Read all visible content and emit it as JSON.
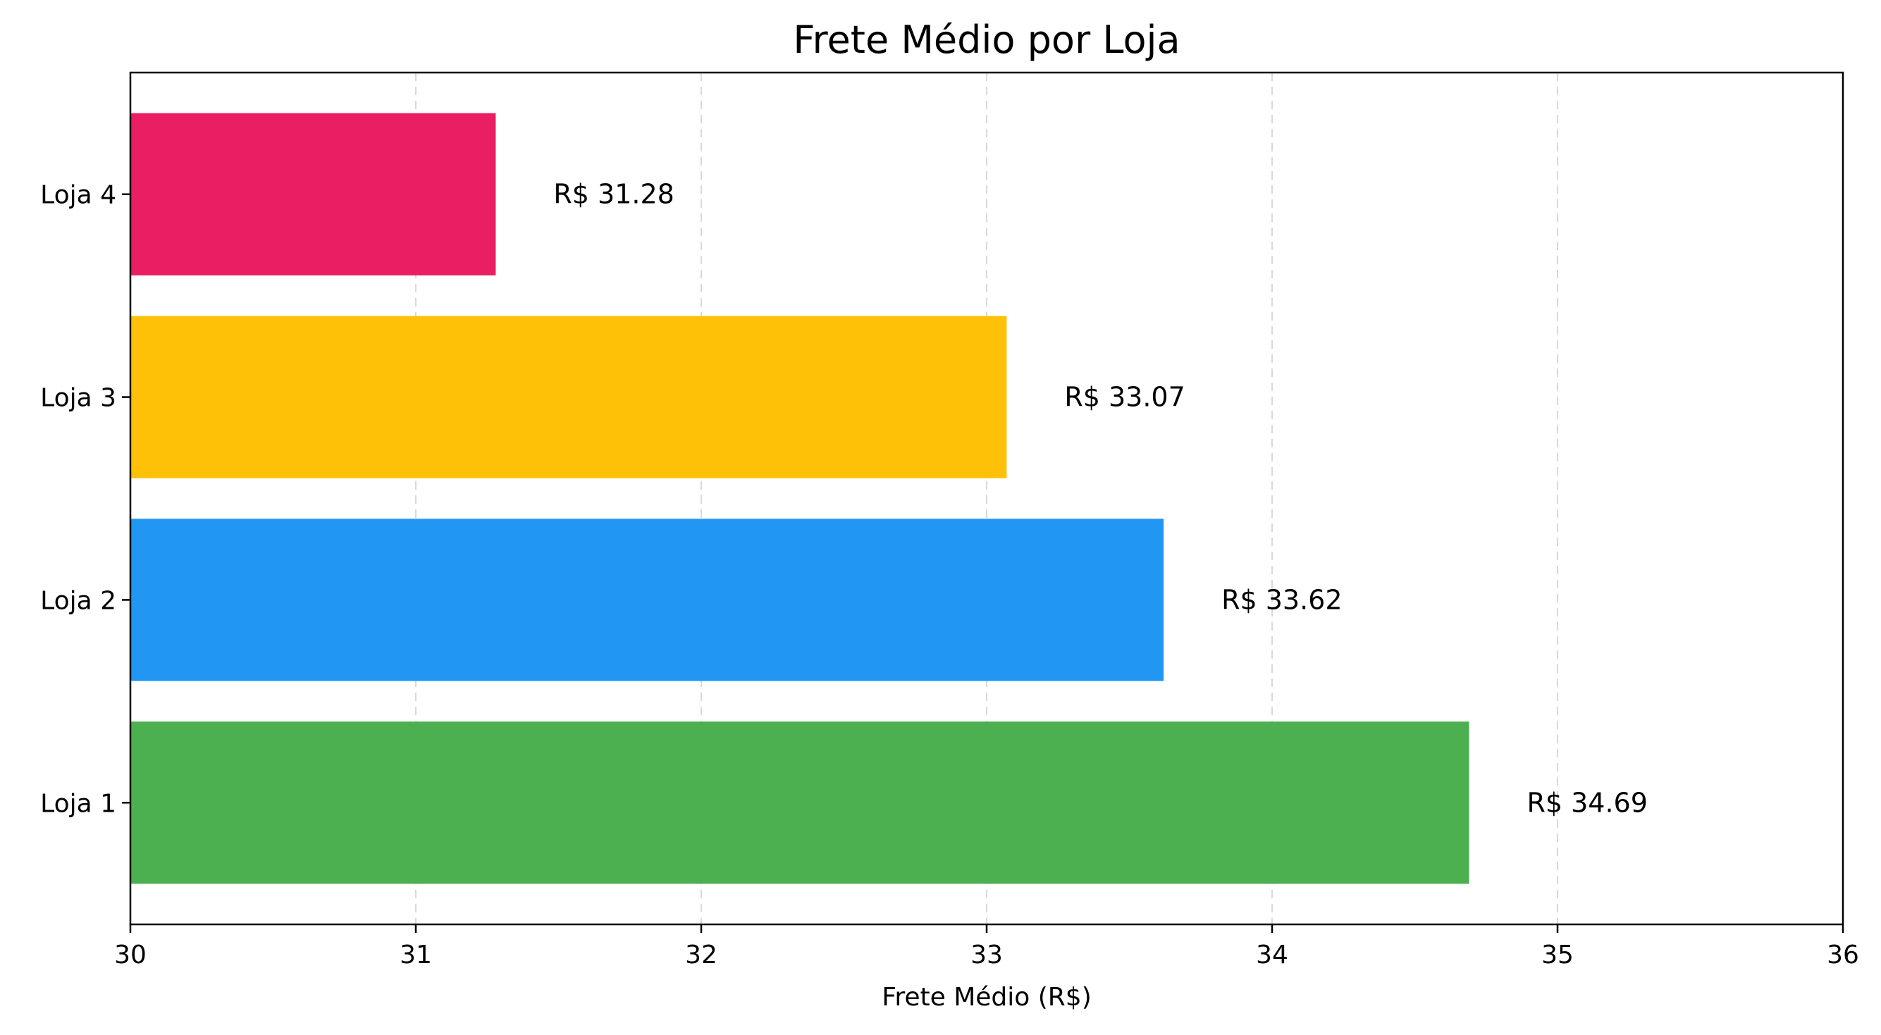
{
  "chart_data": {
    "type": "bar",
    "orientation": "horizontal",
    "title": "Frete Médio por Loja",
    "xlabel": "Frete Médio (R$)",
    "ylabel": "",
    "xlim": [
      30,
      36
    ],
    "x_ticks": [
      "30",
      "31",
      "32",
      "33",
      "34",
      "35",
      "36"
    ],
    "grid": "vertical dashed",
    "categories": [
      "Loja 1",
      "Loja 2",
      "Loja 3",
      "Loja 4"
    ],
    "values": [
      34.69,
      33.62,
      33.07,
      31.28
    ],
    "data_labels": [
      "R$ 34.69",
      "R$ 33.62",
      "R$ 33.07",
      "R$ 31.28"
    ],
    "colors": [
      "#4caf50",
      "#2196f3",
      "#ffc107",
      "#e91e63"
    ]
  }
}
